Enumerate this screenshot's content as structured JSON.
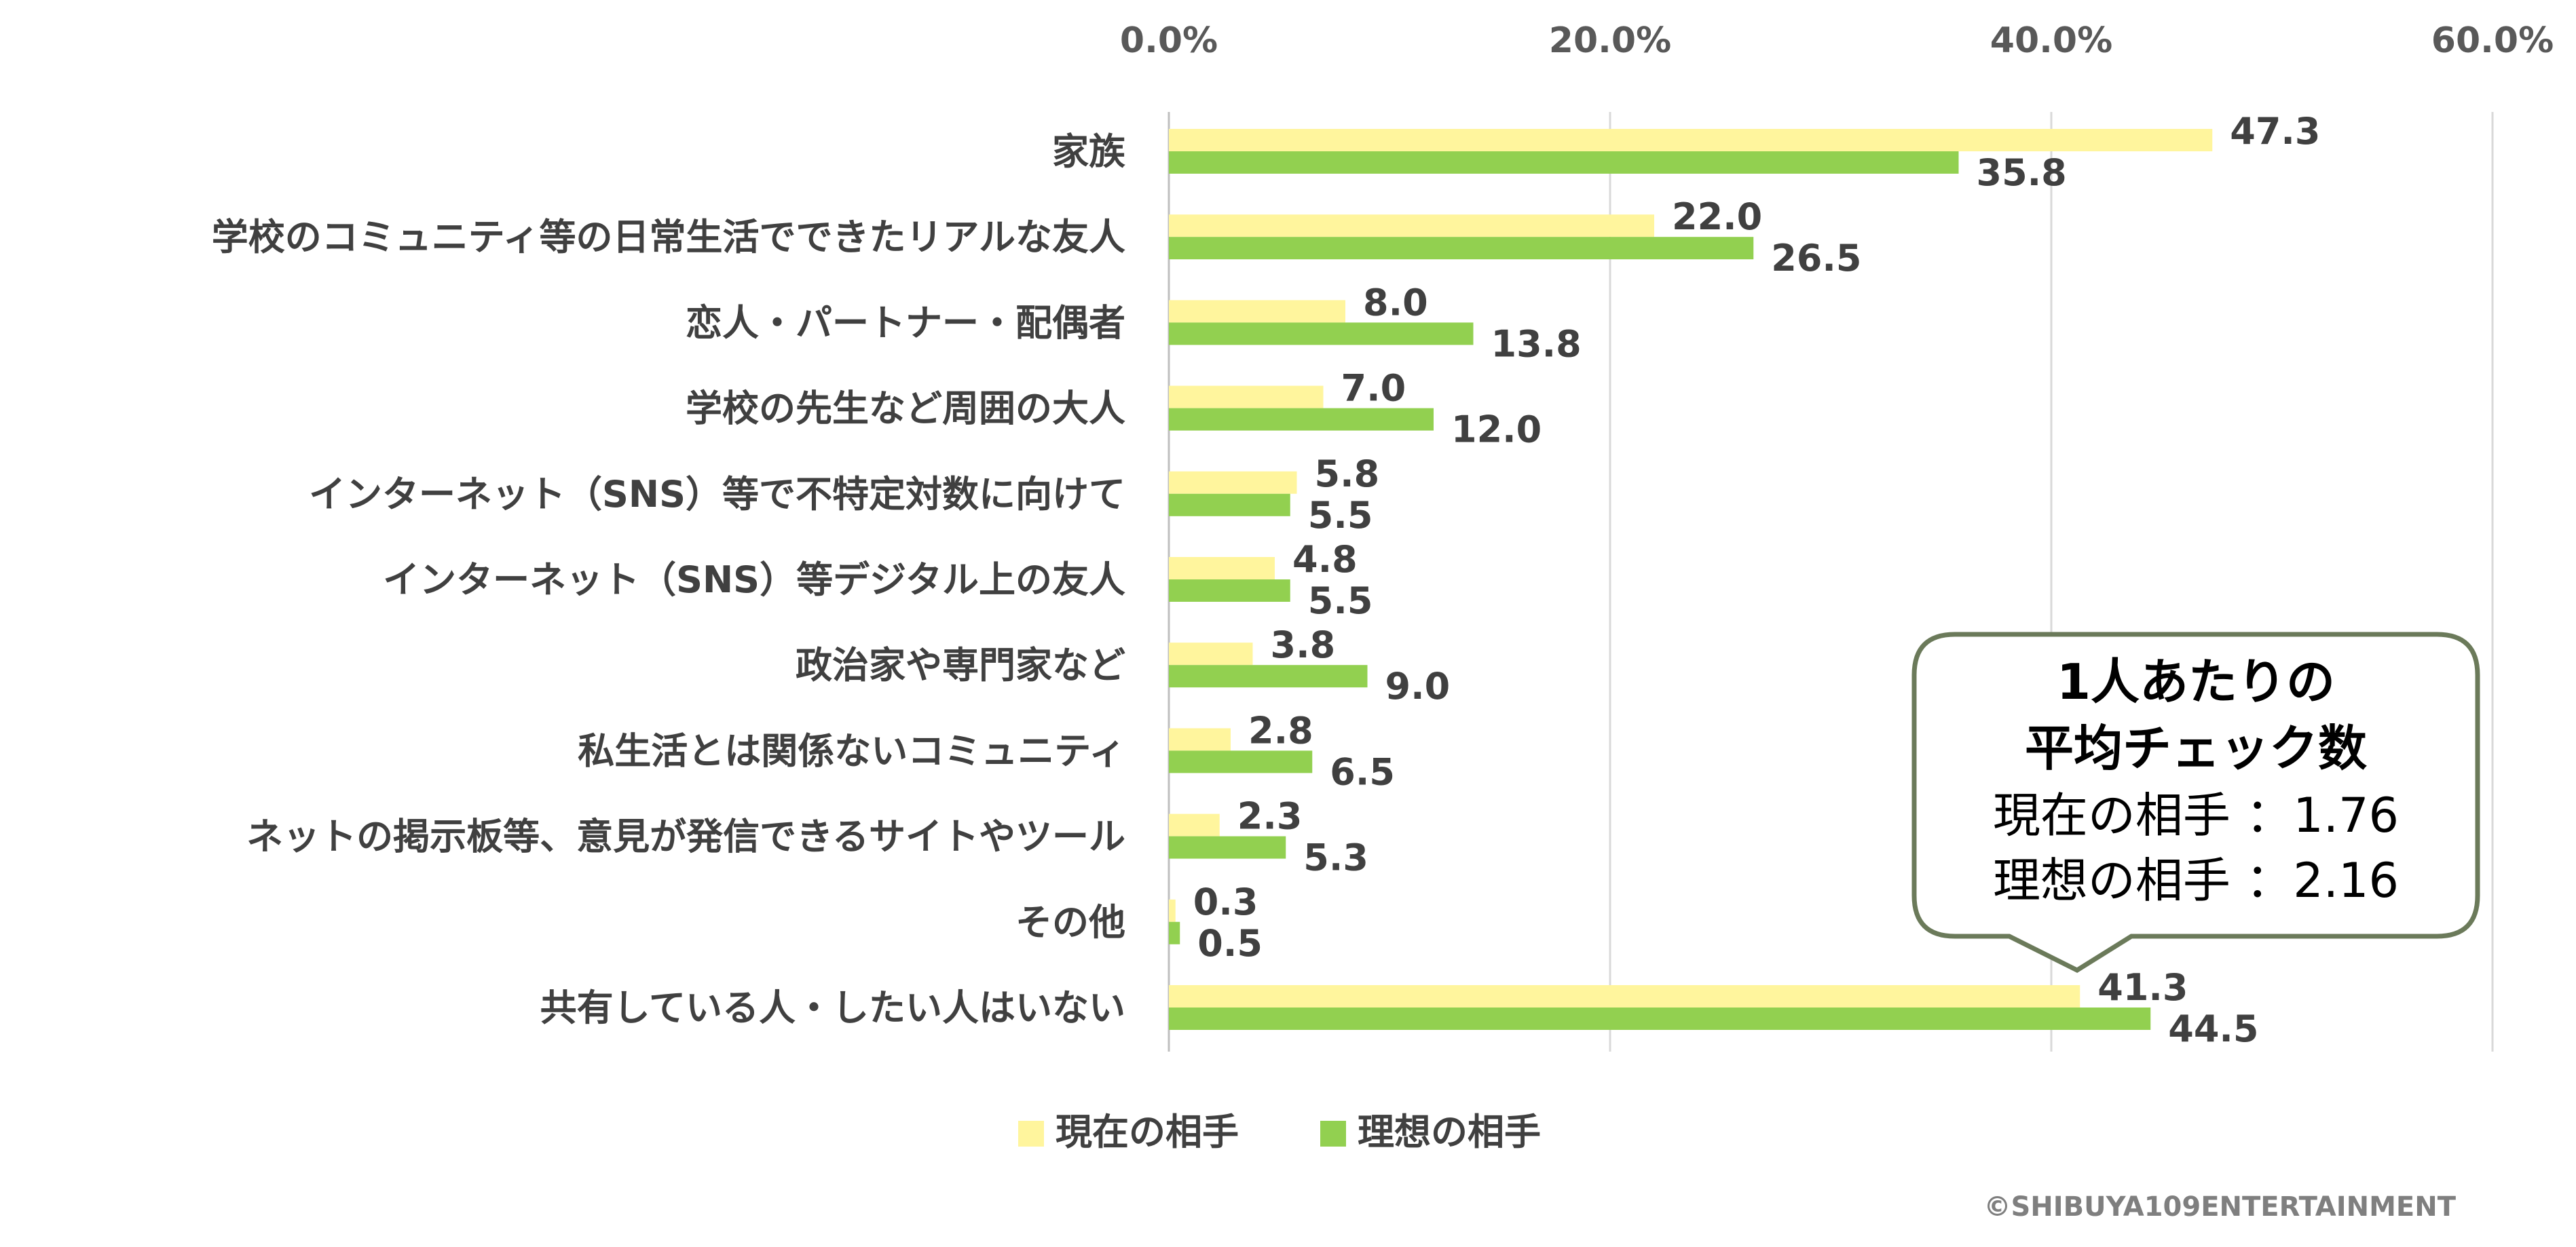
{
  "chart_data": {
    "type": "bar",
    "orientation": "horizontal",
    "categories": [
      "家族",
      "学校のコミュニティ等の日常生活でできたリアルな友人",
      "恋人・パートナー・配偶者",
      "学校の先生など周囲の大人",
      "インターネット（SNS）等で不特定対数に向けて",
      "インターネット（SNS）等デジタル上の友人",
      "政治家や専門家など",
      "私生活とは関係ないコミュニティ",
      "ネットの掲示板等、意見が発信できるサイトやツール",
      "その他",
      "共有している人・したい人はいない"
    ],
    "series": [
      {
        "name": "現在の相手",
        "color": "#fff59d",
        "values": [
          47.3,
          22.0,
          8.0,
          7.0,
          5.8,
          4.8,
          3.8,
          2.8,
          2.3,
          0.3,
          41.3
        ],
        "labels": [
          "47.3",
          "22.0",
          "8.0",
          "7.0",
          "5.8",
          "4.8",
          "3.8",
          "2.8",
          "2.3",
          "0.3",
          "41.3"
        ]
      },
      {
        "name": "理想の相手",
        "color": "#92d050",
        "values": [
          35.8,
          26.5,
          13.8,
          12.0,
          5.5,
          5.5,
          9.0,
          6.5,
          5.3,
          0.5,
          44.5
        ],
        "labels": [
          "35.8",
          "26.5",
          "13.8",
          "12.0",
          "5.5",
          "5.5",
          "9.0",
          "6.5",
          "5.3",
          "0.5",
          "44.5"
        ]
      }
    ],
    "xlim": [
      0,
      60
    ],
    "xticks": [
      0,
      20,
      40,
      60
    ],
    "xtick_labels": [
      "0.0%",
      "20.0%",
      "40.0%",
      "60.0%"
    ],
    "axis_position": "top",
    "grid": true,
    "legend": "bottom"
  },
  "callout": {
    "title_line1": "1人あたりの",
    "title_line2": "平均チェック数",
    "line1": "現在の相手 ：1.76",
    "line2": "理想の相手 ：2.16",
    "border_color": "#6b7a5a"
  },
  "copyright": "©SHIBUYA109ENTERTAINMENT"
}
